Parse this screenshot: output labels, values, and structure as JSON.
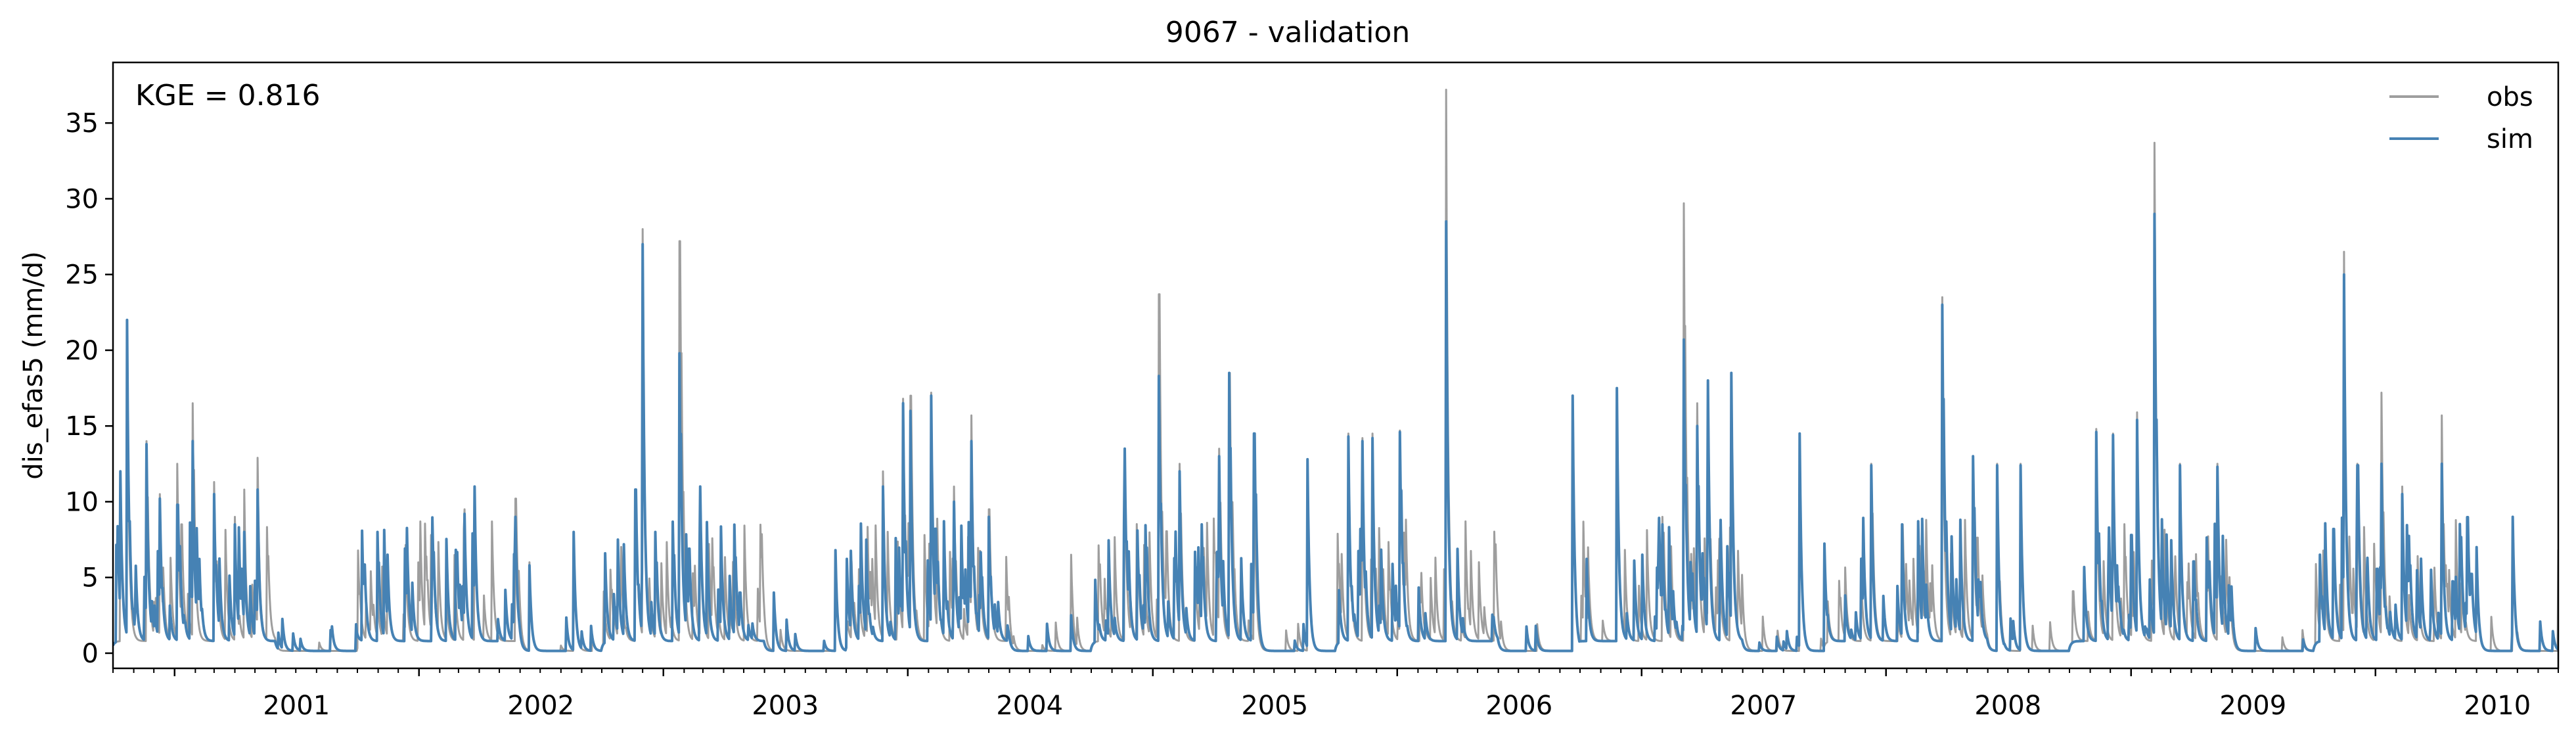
{
  "chart_data": {
    "type": "line",
    "title": "9067 - validation",
    "ylabel": "dis_efas5 (mm/d)",
    "xlabel": "",
    "annotation": "KGE = 0.816",
    "xlim": [
      "2000-10-01",
      "2010-10-01"
    ],
    "ylim": [
      -1,
      39
    ],
    "yticks": [
      0,
      5,
      10,
      15,
      20,
      25,
      30,
      35
    ],
    "xticks": [
      "2001",
      "2002",
      "2003",
      "2004",
      "2005",
      "2006",
      "2007",
      "2008",
      "2009",
      "2010"
    ],
    "legend": "top-right",
    "grid": false,
    "series": [
      {
        "name": "obs",
        "color": "#9e9e9e",
        "peaks": [
          [
            "2000-10-12",
            12.0
          ],
          [
            "2000-10-22",
            21.0
          ],
          [
            "2000-11-20",
            14.0
          ],
          [
            "2000-12-10",
            10.5
          ],
          [
            "2001-01-05",
            12.5
          ],
          [
            "2001-01-28",
            16.5
          ],
          [
            "2001-03-01",
            11.3
          ],
          [
            "2001-04-01",
            9.0
          ],
          [
            "2001-04-15",
            10.8
          ],
          [
            "2001-05-05",
            12.9
          ],
          [
            "2001-11-15",
            6.5
          ],
          [
            "2002-03-10",
            9.5
          ],
          [
            "2002-03-25",
            10.8
          ],
          [
            "2002-05-25",
            10.2
          ],
          [
            "2002-06-15",
            6.0
          ],
          [
            "2002-08-20",
            8.0
          ],
          [
            "2002-10-25",
            7.5
          ],
          [
            "2002-11-20",
            10.8
          ],
          [
            "2002-12-01",
            28.0
          ],
          [
            "2002-12-20",
            8.0
          ],
          [
            "2003-01-25",
            27.2
          ],
          [
            "2003-02-25",
            11.0
          ],
          [
            "2003-06-15",
            4.0
          ],
          [
            "2003-09-15",
            6.8
          ],
          [
            "2003-11-25",
            12.0
          ],
          [
            "2003-12-25",
            16.8
          ],
          [
            "2004-01-05",
            17.0
          ],
          [
            "2004-02-05",
            17.2
          ],
          [
            "2004-03-10",
            11.0
          ],
          [
            "2004-04-05",
            15.7
          ],
          [
            "2004-05-01",
            9.5
          ],
          [
            "2004-09-01",
            6.5
          ],
          [
            "2004-11-20",
            13.5
          ],
          [
            "2005-01-10",
            23.7
          ],
          [
            "2005-02-10",
            12.5
          ],
          [
            "2005-03-15",
            8.5
          ],
          [
            "2005-04-10",
            13.5
          ],
          [
            "2005-04-25",
            18.5
          ],
          [
            "2005-06-01",
            14.5
          ],
          [
            "2005-08-20",
            12.8
          ],
          [
            "2005-10-20",
            14.5
          ],
          [
            "2005-11-10",
            14.2
          ],
          [
            "2005-11-25",
            14.5
          ],
          [
            "2006-01-05",
            14.7
          ],
          [
            "2006-03-15",
            37.2
          ],
          [
            "2006-09-20",
            17.0
          ],
          [
            "2006-11-25",
            17.5
          ],
          [
            "2007-02-01",
            9.0
          ],
          [
            "2007-03-05",
            29.7
          ],
          [
            "2007-03-25",
            16.5
          ],
          [
            "2007-04-10",
            18.0
          ],
          [
            "2007-05-15",
            18.5
          ],
          [
            "2007-08-25",
            14.5
          ],
          [
            "2007-12-10",
            12.5
          ],
          [
            "2008-01-25",
            8.5
          ],
          [
            "2008-03-25",
            23.5
          ],
          [
            "2008-05-10",
            13.0
          ],
          [
            "2008-06-15",
            12.5
          ],
          [
            "2008-07-20",
            12.5
          ],
          [
            "2008-11-10",
            14.8
          ],
          [
            "2008-12-05",
            14.5
          ],
          [
            "2009-01-10",
            15.9
          ],
          [
            "2009-02-05",
            33.7
          ],
          [
            "2009-03-15",
            12.5
          ],
          [
            "2009-05-10",
            12.5
          ],
          [
            "2009-10-10",
            6.5
          ],
          [
            "2009-11-15",
            26.5
          ],
          [
            "2009-12-05",
            12.5
          ],
          [
            "2010-01-10",
            17.2
          ],
          [
            "2010-02-10",
            11.0
          ],
          [
            "2010-04-10",
            15.7
          ],
          [
            "2010-06-01",
            7.0
          ],
          [
            "2010-07-25",
            9.0
          ]
        ]
      },
      {
        "name": "sim",
        "color": "#4682b4",
        "peaks": [
          [
            "2000-10-12",
            12.0
          ],
          [
            "2000-10-22",
            22.0
          ],
          [
            "2000-11-20",
            13.8
          ],
          [
            "2000-12-10",
            10.2
          ],
          [
            "2001-01-05",
            9.8
          ],
          [
            "2001-01-28",
            14.0
          ],
          [
            "2001-03-01",
            10.5
          ],
          [
            "2001-04-01",
            8.5
          ],
          [
            "2001-04-15",
            8.0
          ],
          [
            "2001-05-05",
            10.8
          ],
          [
            "2001-11-15",
            6.5
          ],
          [
            "2002-03-10",
            9.2
          ],
          [
            "2002-03-25",
            11.0
          ],
          [
            "2002-05-25",
            9.0
          ],
          [
            "2002-06-15",
            5.8
          ],
          [
            "2002-08-20",
            8.0
          ],
          [
            "2002-10-25",
            7.5
          ],
          [
            "2002-11-20",
            10.8
          ],
          [
            "2002-12-01",
            27.0
          ],
          [
            "2002-12-20",
            8.0
          ],
          [
            "2003-01-25",
            19.8
          ],
          [
            "2003-02-25",
            11.0
          ],
          [
            "2003-06-15",
            4.0
          ],
          [
            "2003-09-15",
            6.8
          ],
          [
            "2003-11-25",
            11.0
          ],
          [
            "2003-12-25",
            16.5
          ],
          [
            "2004-01-05",
            16.0
          ],
          [
            "2004-02-05",
            17.0
          ],
          [
            "2004-03-10",
            10.0
          ],
          [
            "2004-04-05",
            14.0
          ],
          [
            "2004-05-01",
            9.0
          ],
          [
            "2004-09-01",
            2.5
          ],
          [
            "2004-11-20",
            13.5
          ],
          [
            "2005-01-10",
            18.3
          ],
          [
            "2005-02-10",
            12.0
          ],
          [
            "2005-03-15",
            8.5
          ],
          [
            "2005-04-10",
            13.0
          ],
          [
            "2005-04-25",
            18.5
          ],
          [
            "2005-06-01",
            14.5
          ],
          [
            "2005-08-20",
            12.8
          ],
          [
            "2005-10-20",
            14.3
          ],
          [
            "2005-11-10",
            14.0
          ],
          [
            "2005-11-25",
            14.2
          ],
          [
            "2006-01-05",
            14.6
          ],
          [
            "2006-03-15",
            28.5
          ],
          [
            "2006-09-20",
            17.0
          ],
          [
            "2006-11-25",
            17.5
          ],
          [
            "2007-02-01",
            8.5
          ],
          [
            "2007-03-05",
            20.7
          ],
          [
            "2007-03-25",
            15.0
          ],
          [
            "2007-04-10",
            18.0
          ],
          [
            "2007-05-15",
            18.5
          ],
          [
            "2007-08-25",
            14.5
          ],
          [
            "2007-12-10",
            12.4
          ],
          [
            "2008-01-25",
            8.5
          ],
          [
            "2008-03-25",
            23.0
          ],
          [
            "2008-05-10",
            13.0
          ],
          [
            "2008-06-15",
            12.4
          ],
          [
            "2008-07-20",
            12.4
          ],
          [
            "2008-11-10",
            14.6
          ],
          [
            "2008-12-05",
            14.4
          ],
          [
            "2009-01-10",
            15.4
          ],
          [
            "2009-02-05",
            29.0
          ],
          [
            "2009-03-15",
            12.4
          ],
          [
            "2009-05-10",
            12.3
          ],
          [
            "2009-10-10",
            6.5
          ],
          [
            "2009-11-15",
            25.0
          ],
          [
            "2009-12-05",
            12.4
          ],
          [
            "2010-01-10",
            12.5
          ],
          [
            "2010-02-10",
            10.5
          ],
          [
            "2010-04-10",
            12.5
          ],
          [
            "2010-06-01",
            7.0
          ],
          [
            "2010-07-25",
            9.0
          ]
        ]
      }
    ]
  }
}
